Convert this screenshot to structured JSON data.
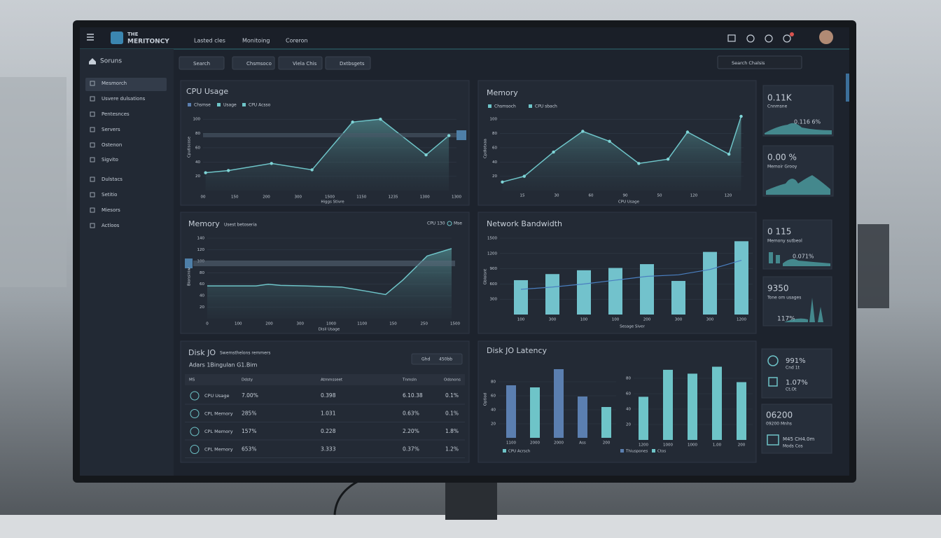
{
  "header": {
    "logo_top": "THE",
    "logo": "MERITONCY",
    "nav": [
      "Lasted cles",
      "Monitoing",
      "Coreron"
    ]
  },
  "sidebar": {
    "title": "Soruns",
    "items": [
      "Mesmorch",
      "Usvere dulsations",
      "Pentesnces",
      "Servers",
      "Ostenon",
      "Sigvito",
      "Dulstacs",
      "Setitio",
      "Miesors",
      "Actloos"
    ]
  },
  "toolbar": {
    "buttons": [
      "Search",
      "Chsmsoco",
      "Viela Chis",
      "Dxtbsgets"
    ],
    "search": "Search Chalsis"
  },
  "cpu_usage": {
    "title": "CPU Usage",
    "legend": [
      "Chsmse",
      "Usage",
      "CPU Acsso"
    ],
    "y_label": "Cputiscose",
    "x_label": "Higgs Stivre",
    "xtick_labels": [
      "00",
      "150",
      "200",
      "300",
      "1500",
      "1150",
      "1235",
      "1300",
      "1300"
    ],
    "xlim": [
      0,
      100
    ],
    "ylim": [
      0,
      110
    ],
    "yticks": [
      20,
      40,
      60,
      80,
      100
    ],
    "x": [
      1,
      10,
      27,
      43,
      59,
      70,
      88,
      97
    ],
    "values": [
      25,
      28,
      38,
      29,
      96,
      100,
      50,
      77
    ]
  },
  "memory_top": {
    "title": "Memory",
    "legend": [
      "Chsmsoch",
      "CPU sbach"
    ],
    "y_label": "Cpdlotxaa",
    "x_label": "CPU Usage",
    "xtick_labels": [
      "15",
      "30",
      "60",
      "90",
      "50",
      "120",
      "120"
    ],
    "xlim": [
      0,
      100
    ],
    "ylim": [
      0,
      110
    ],
    "yticks": [
      20,
      40,
      60,
      80,
      100
    ],
    "x": [
      1,
      10,
      22,
      34,
      45,
      57,
      69,
      77,
      94,
      99
    ],
    "values": [
      12,
      20,
      54,
      83,
      69,
      38,
      44,
      82,
      51,
      104
    ]
  },
  "memory_mid": {
    "title": "Memory",
    "subtitle": "Usest betoseria",
    "badges": [
      "CPU 130",
      "Mse"
    ],
    "y_label": "Bionsiniw",
    "x_label": "Disil Usage",
    "xtick_labels": [
      "0",
      "100",
      "200",
      "300",
      "1000",
      "1100",
      "150",
      "250",
      "1500"
    ],
    "xlim": [
      0,
      100
    ],
    "ylim": [
      0,
      140
    ],
    "yticks": [
      20,
      40,
      60,
      80,
      100,
      120,
      140
    ],
    "x": [
      0,
      10,
      20,
      25,
      30,
      40,
      55,
      65,
      73,
      80,
      90,
      100
    ],
    "values": [
      57,
      57,
      57,
      60,
      58,
      57,
      55,
      48,
      42,
      67,
      109,
      122
    ]
  },
  "network": {
    "title": "Network Bandwidth",
    "y_label": "Gbloisnt",
    "x_label": "Sesage Siver",
    "categories": [
      "100",
      "300",
      "100",
      "100",
      "200",
      "300",
      "300",
      "1200"
    ],
    "ylim": [
      0,
      1500
    ],
    "yticks": [
      300,
      600,
      900,
      1200,
      1500
    ],
    "values": [
      675,
      795,
      870,
      915,
      990,
      660,
      1230,
      1440
    ],
    "line": [
      495,
      540,
      600,
      675,
      750,
      780,
      885,
      1065
    ]
  },
  "disk_latency": {
    "title": "Disk JO Latency",
    "y_label": "Optiod",
    "groups": [
      {
        "legend": [
          "CPU Acrsch"
        ],
        "categories": [
          "1100",
          "2000",
          "2000",
          "Ass",
          "200"
        ],
        "ylim": [
          0,
          100
        ],
        "yticks": [
          20,
          40,
          60,
          80
        ],
        "values": [
          75,
          72,
          98,
          59,
          44
        ],
        "colors": [
          "#5b7fb0",
          "#6ec4c8",
          "#5b7fb0",
          "#5b7fb0",
          "#6ec4c8"
        ]
      },
      {
        "legend": [
          "Thiuspones",
          "Ctos"
        ],
        "categories": [
          "1200",
          "1000",
          "1000",
          "1,00",
          "200"
        ],
        "ylim": [
          0,
          100
        ],
        "yticks": [
          20,
          40,
          60,
          80
        ],
        "values": [
          56,
          91,
          86,
          95,
          75
        ],
        "colors": [
          "#6ec4c8",
          "#6ec4c8",
          "#6ec4c8",
          "#6ec4c8",
          "#6ec4c8"
        ]
      }
    ]
  },
  "disk_io": {
    "title": "Disk JO",
    "subtitle": "Adars 1Bingulan G1.Bim",
    "note": "Swemsthelons remmers",
    "button": [
      "Ghd",
      "450bb"
    ],
    "headers": [
      "MS",
      "Ddsty",
      "Atmmsseet",
      "Tnmsln",
      "Odsnons"
    ],
    "rows": [
      [
        "CPU Usage",
        "7.00%",
        "0.398",
        "6.10.38",
        "0.1%"
      ],
      [
        "CPL Memory",
        "285%",
        "1.031",
        "0.63%",
        "0.1%"
      ],
      [
        "CPL Memory",
        "157%",
        "0.228",
        "2.20%",
        "1.8%"
      ],
      [
        "CPL Memory",
        "653%",
        "3.333",
        "0.37%",
        "1.2%"
      ]
    ]
  },
  "cards": [
    [
      "0.11K",
      "Cnnmsne",
      "0.116 6%"
    ],
    [
      "0.00 %",
      "Memoir Grooy"
    ],
    [
      "0 115",
      "Memony sutbeol",
      "0.071%"
    ],
    [
      "9350",
      "Tone om usages",
      "117%"
    ],
    [
      "991%",
      "Cnd 1t",
      "1.07%",
      "Ct.Ot"
    ],
    [
      "06200",
      "09200 Mnhs",
      "M45 CH4.0m",
      "Mods Cos"
    ]
  ]
}
